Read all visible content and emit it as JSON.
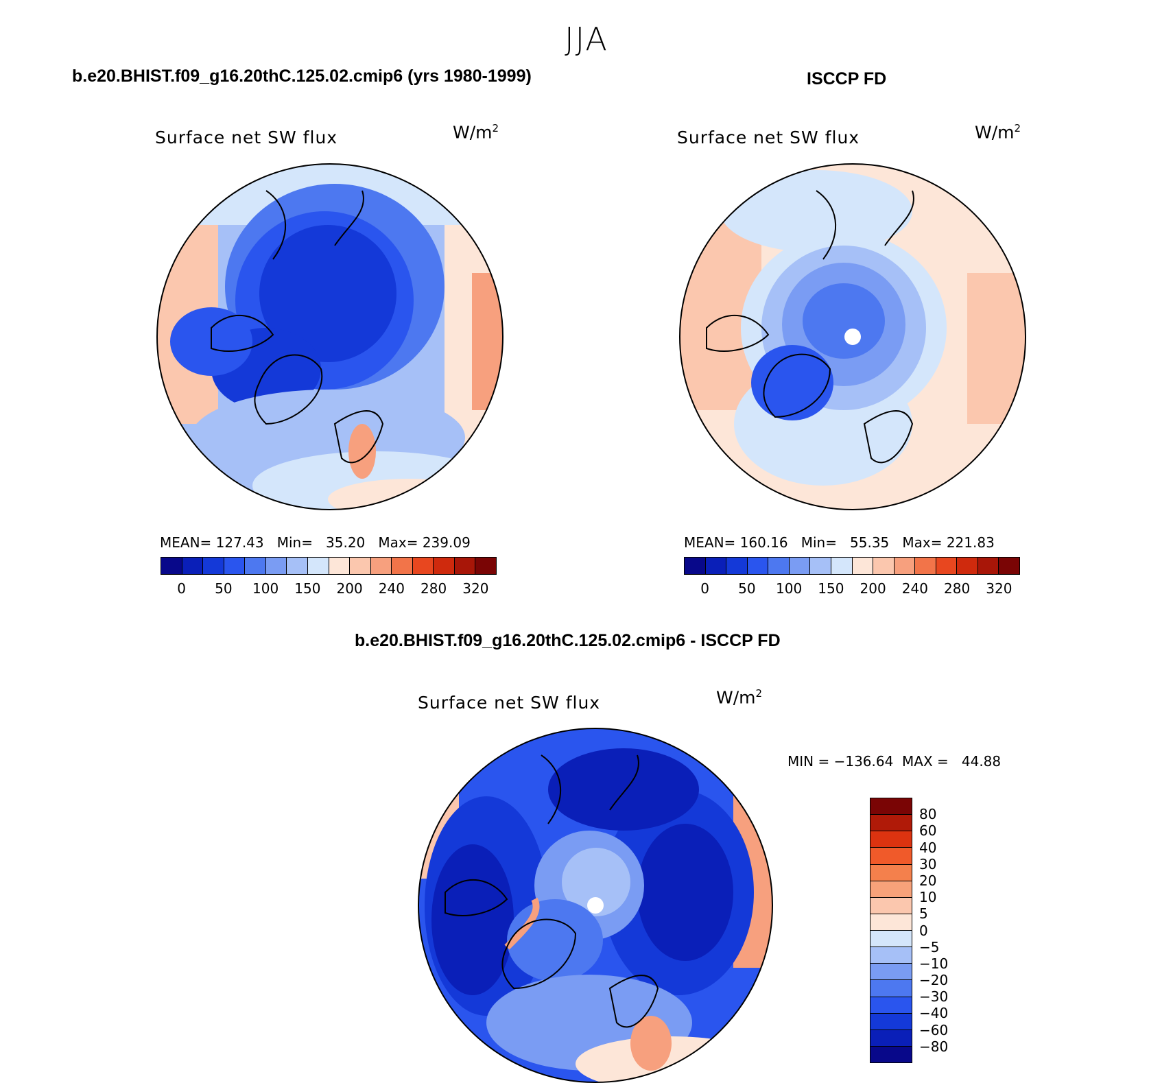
{
  "season": "JJA",
  "panels": {
    "model": {
      "case_title": "b.e20.BHIST.f09_g16.20thC.125.02.cmip6 (yrs 1980-1999)",
      "variable": "Surface net SW flux",
      "unit_base": "W/m",
      "unit_exp": "2",
      "stats": "MEAN= 127.43   Min=   35.20   Max= 239.09"
    },
    "obs": {
      "case_title": "ISCCP FD",
      "variable": "Surface net SW flux",
      "unit_base": "W/m",
      "unit_exp": "2",
      "stats": "MEAN= 160.16   Min=   55.35   Max= 221.83"
    },
    "diff": {
      "case_title": "b.e20.BHIST.f09_g16.20thC.125.02.cmip6 - ISCCP FD",
      "variable": "Surface net SW flux",
      "unit_base": "W/m",
      "unit_exp": "2",
      "stats": "MIN = −136.64  MAX =   44.88"
    }
  },
  "colorbar_main": {
    "colors": [
      "#08088a",
      "#0a1fb8",
      "#1439d8",
      "#2a55ee",
      "#4d78f0",
      "#7a9cf3",
      "#a6c0f7",
      "#d4e6fb",
      "#fde6d8",
      "#fbc7ae",
      "#f7a07e",
      "#f27449",
      "#e8471f",
      "#cf2a0d",
      "#a81608",
      "#7a0505"
    ],
    "tick_labels": [
      "0",
      "50",
      "100",
      "150",
      "200",
      "240",
      "280",
      "320"
    ]
  },
  "colorbar_diff": {
    "colors": [
      "#7a0505",
      "#b01a08",
      "#dc3310",
      "#f05a2a",
      "#f4804c",
      "#f7a27a",
      "#fbc7ae",
      "#fde6d8",
      "#d4e6fb",
      "#a6c0f7",
      "#7a9cf3",
      "#4d78f0",
      "#2a55ee",
      "#1439d8",
      "#0a1fb8",
      "#08088a"
    ],
    "tick_labels": [
      "80",
      "60",
      "40",
      "30",
      "20",
      "10",
      "5",
      "0",
      "−5",
      "−10",
      "−20",
      "−30",
      "−40",
      "−60",
      "−80"
    ]
  }
}
